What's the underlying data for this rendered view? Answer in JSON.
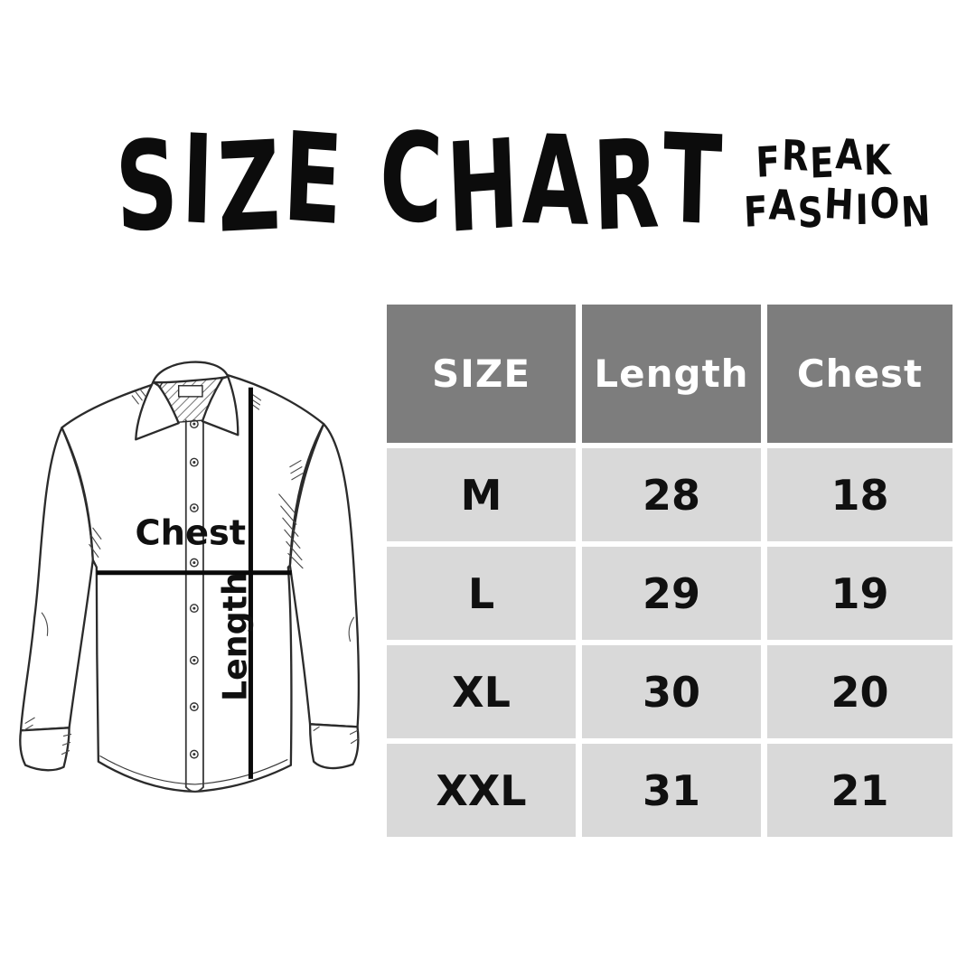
{
  "title": "SIZE CHART",
  "brand": {
    "line1": "FREAK",
    "line2": "FASHION"
  },
  "shirt": {
    "chest_label": "Chest",
    "length_label": "Length"
  },
  "table": {
    "headers": [
      "SIZE",
      "Length",
      "Chest"
    ],
    "rows": [
      {
        "size": "M",
        "length": "28",
        "chest": "18"
      },
      {
        "size": "L",
        "length": "29",
        "chest": "19"
      },
      {
        "size": "XL",
        "length": "30",
        "chest": "20"
      },
      {
        "size": "XXL",
        "length": "31",
        "chest": "21"
      }
    ]
  },
  "colors": {
    "background": "#ffffff",
    "header_bg": "#7d7d7d",
    "header_text": "#ffffff",
    "row_bg": "#d9d9d9",
    "ink": "#101010"
  },
  "chart_data": {
    "type": "table",
    "title": "SIZE CHART",
    "columns": [
      "SIZE",
      "Length",
      "Chest"
    ],
    "rows": [
      [
        "M",
        28,
        18
      ],
      [
        "L",
        29,
        19
      ],
      [
        "XL",
        30,
        20
      ],
      [
        "XXL",
        31,
        21
      ]
    ]
  }
}
